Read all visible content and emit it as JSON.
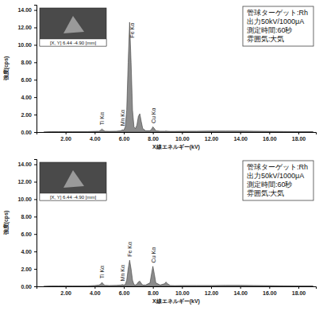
{
  "chart_data": [
    {
      "type": "area",
      "x_label": "X線エネルギー(kV)",
      "y_label": "強度(cps)",
      "color": "#8c8c8c",
      "grid": false,
      "xlim": [
        0,
        19.2
      ],
      "ylim": [
        0,
        14.6
      ],
      "xticks": [
        {
          "value": 2,
          "label": "2.00"
        },
        {
          "value": 4,
          "label": "4.00"
        },
        {
          "value": 6,
          "label": "6.00"
        },
        {
          "value": 8,
          "label": "8.00"
        },
        {
          "value": 10,
          "label": "10.00"
        },
        {
          "value": 12,
          "label": "12.00"
        },
        {
          "value": 14,
          "label": "14.00"
        },
        {
          "value": 16,
          "label": "16.00"
        },
        {
          "value": 18,
          "label": "18.00"
        }
      ],
      "yticks": [
        {
          "value": 0,
          "label": "0.00"
        },
        {
          "value": 2,
          "label": "2.00"
        },
        {
          "value": 4,
          "label": "4.00"
        },
        {
          "value": 6,
          "label": "6.00"
        },
        {
          "value": 8,
          "label": "8.00"
        },
        {
          "value": 10,
          "label": "10.00"
        },
        {
          "value": 12,
          "label": "12.00"
        },
        {
          "value": 14,
          "label": "14.00"
        }
      ],
      "x": [
        0.5,
        1.0,
        1.5,
        2.0,
        2.5,
        3.0,
        3.5,
        4.0,
        4.3,
        4.4,
        4.5,
        4.6,
        4.7,
        5.0,
        5.5,
        5.8,
        5.9,
        6.0,
        6.1,
        6.2,
        6.3,
        6.4,
        6.5,
        6.6,
        6.7,
        6.8,
        6.9,
        7.0,
        7.1,
        7.2,
        7.3,
        7.5,
        7.8,
        7.9,
        8.0,
        8.1,
        8.2,
        8.5,
        8.8,
        8.9,
        9.0,
        9.2,
        9.5,
        10.0,
        11.0,
        12.0,
        13.0,
        14.0,
        15.0,
        16.0,
        17.0,
        18.0,
        19.0
      ],
      "values": [
        0,
        0.05,
        0.05,
        0.05,
        0.05,
        0.05,
        0.05,
        0.08,
        0.1,
        0.2,
        0.35,
        0.2,
        0.1,
        0.08,
        0.1,
        0.15,
        0.25,
        0.2,
        0.6,
        2.5,
        8.0,
        12.6,
        8.0,
        2.5,
        0.6,
        0.4,
        0.8,
        1.8,
        2.1,
        1.2,
        0.4,
        0.15,
        0.15,
        0.3,
        0.6,
        0.4,
        0.15,
        0.1,
        0.1,
        0.12,
        0.1,
        0.08,
        0.08,
        0.1,
        0.1,
        0.12,
        0.12,
        0.12,
        0.1,
        0.08,
        0.06,
        0.05,
        0.05
      ],
      "annotations": [
        {
          "text": "Ti Kα",
          "x": 4.5,
          "y": 0.8
        },
        {
          "text": "Mn Kα",
          "x": 5.9,
          "y": 0.7
        },
        {
          "text": "Fe Kα",
          "x": 6.6,
          "y": 10.8
        },
        {
          "text": "Cu Kα",
          "x": 8.05,
          "y": 1.0
        }
      ],
      "info_box": [
        "管球ターゲット:Rh",
        "出力50kV/1000μA",
        "測定時間:60秒",
        "雰囲気:大気"
      ],
      "inset_caption": "[X, Y] 6.44 -4.90 [mm]"
    },
    {
      "type": "area",
      "x_label": "X線エネルギー(kV)",
      "y_label": "強度(cps)",
      "color": "#8c8c8c",
      "grid": false,
      "xlim": [
        0,
        19.2
      ],
      "ylim": [
        0,
        14.6
      ],
      "xticks": [
        {
          "value": 2,
          "label": "2.00"
        },
        {
          "value": 4,
          "label": "4.00"
        },
        {
          "value": 6,
          "label": "6.00"
        },
        {
          "value": 8,
          "label": "8.00"
        },
        {
          "value": 10,
          "label": "10.00"
        },
        {
          "value": 12,
          "label": "12.00"
        },
        {
          "value": 14,
          "label": "14.00"
        },
        {
          "value": 16,
          "label": "16.00"
        },
        {
          "value": 18,
          "label": "18.00"
        }
      ],
      "yticks": [
        {
          "value": 0,
          "label": "0.00"
        },
        {
          "value": 2,
          "label": "2.00"
        },
        {
          "value": 4,
          "label": "4.00"
        },
        {
          "value": 6,
          "label": "6.00"
        },
        {
          "value": 8,
          "label": "8.00"
        },
        {
          "value": 10,
          "label": "10.00"
        },
        {
          "value": 12,
          "label": "12.00"
        },
        {
          "value": 14,
          "label": "14.00"
        }
      ],
      "x": [
        0.5,
        1.0,
        1.5,
        2.0,
        2.5,
        3.0,
        3.5,
        4.0,
        4.3,
        4.4,
        4.5,
        4.6,
        4.7,
        5.0,
        5.5,
        5.8,
        5.9,
        6.0,
        6.1,
        6.2,
        6.3,
        6.4,
        6.5,
        6.6,
        6.7,
        6.8,
        6.9,
        7.0,
        7.1,
        7.2,
        7.3,
        7.5,
        7.8,
        7.9,
        8.0,
        8.1,
        8.2,
        8.5,
        8.8,
        8.9,
        9.0,
        9.2,
        9.5,
        10.0,
        11.0,
        12.0,
        13.0,
        14.0,
        15.0,
        16.0,
        17.0,
        18.0,
        19.0
      ],
      "values": [
        0,
        0.05,
        0.05,
        0.05,
        0.05,
        0.05,
        0.05,
        0.1,
        0.15,
        0.25,
        0.45,
        0.25,
        0.12,
        0.1,
        0.12,
        0.15,
        0.2,
        0.15,
        0.2,
        0.7,
        2.0,
        3.0,
        2.0,
        0.7,
        0.2,
        0.15,
        0.25,
        0.5,
        0.6,
        0.35,
        0.15,
        0.15,
        0.4,
        1.4,
        2.3,
        1.4,
        0.4,
        0.15,
        0.3,
        0.5,
        0.3,
        0.1,
        0.08,
        0.1,
        0.1,
        0.1,
        0.12,
        0.12,
        0.1,
        0.08,
        0.06,
        0.05,
        0.05
      ],
      "annotations": [
        {
          "text": "Ti Kα",
          "x": 4.5,
          "y": 0.9
        },
        {
          "text": "Mn Kα",
          "x": 5.9,
          "y": 0.6
        },
        {
          "text": "Fe Kα",
          "x": 6.4,
          "y": 3.4
        },
        {
          "text": "Cu Kα",
          "x": 8.05,
          "y": 2.7
        }
      ],
      "info_box": [
        "管球ターゲット:Rh",
        "出力50kV/1000μA",
        "測定時間:60秒",
        "雰囲気:大気"
      ],
      "inset_caption": "[X, Y] 6.44 -4.90 [mm]"
    }
  ]
}
